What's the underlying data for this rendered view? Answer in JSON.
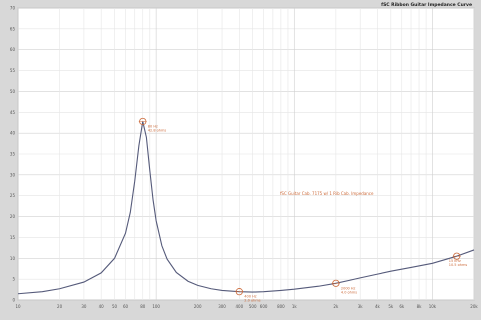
{
  "chart_data": {
    "type": "line",
    "title": "fSC Ribbon Guitar Impedance Curve",
    "annotation": "fSC Guitar Cab. 7175 w/ 1 Rib Cab. Impedance",
    "corner_label": "",
    "xscale": "log",
    "xlim": [
      10,
      20000
    ],
    "ylim": [
      0,
      70
    ],
    "y_ticks": [
      "70",
      "65",
      "60",
      "55",
      "50",
      "45",
      "40",
      "35",
      "30",
      "25",
      "20",
      "15",
      "10",
      "5",
      "0"
    ],
    "x_ticks": [
      "10",
      "20",
      "30",
      "40",
      "50",
      "60",
      "80",
      "100",
      "200",
      "300",
      "400",
      "500",
      "600",
      "800",
      "1k",
      "2k",
      "3k",
      "4k",
      "5k",
      "6k",
      "8k",
      "10k",
      "20k"
    ],
    "grid": true,
    "series": [
      {
        "color": "#555a7a",
        "x": [
          10,
          15,
          20,
          30,
          40,
          50,
          60,
          65,
          70,
          75,
          80,
          85,
          90,
          95,
          100,
          110,
          120,
          140,
          170,
          200,
          250,
          300,
          400,
          500,
          600,
          800,
          1000,
          1500,
          2000,
          2500,
          3000,
          4000,
          5000,
          7000,
          10000,
          15000,
          20000
        ],
        "y": [
          1.5,
          2.0,
          2.7,
          4.3,
          6.5,
          10.0,
          16.0,
          21.0,
          28.5,
          37.0,
          42.8,
          39.0,
          31.0,
          24.0,
          19.0,
          13.0,
          9.8,
          6.6,
          4.5,
          3.5,
          2.7,
          2.3,
          2.0,
          1.9,
          2.0,
          2.3,
          2.6,
          3.3,
          4.0,
          4.7,
          5.3,
          6.2,
          6.9,
          7.8,
          8.8,
          10.5,
          12.0
        ]
      }
    ],
    "markers": [
      {
        "x": 80,
        "y": 42.8,
        "label": "80 Hz\n42.8 ohms"
      },
      {
        "x": 400,
        "y": 2.0,
        "label": "400 Hz\n2.0 ohms"
      },
      {
        "x": 2000,
        "y": 4.0,
        "label": "2000 Hz\n4.0 ohms"
      },
      {
        "x": 15000,
        "y": 10.5,
        "label": "15 kHz\n10.5 ohms"
      }
    ]
  }
}
